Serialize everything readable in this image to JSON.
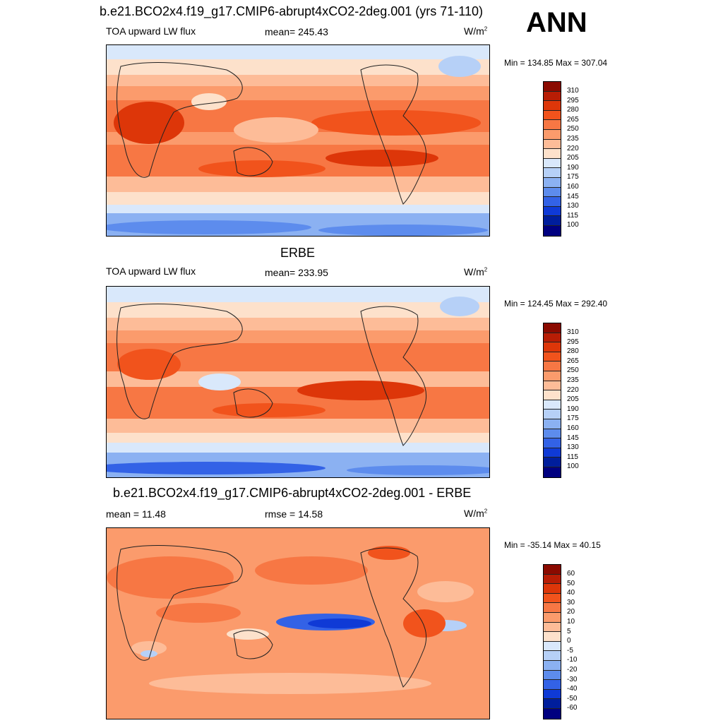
{
  "header": {
    "season": "ANN"
  },
  "panels": [
    {
      "title": "b.e21.BCO2x4.f19_g17.CMIP6-abrupt4xCO2-2deg.001 (yrs 71-110)",
      "left_label": "TOA upward LW flux",
      "center_label": "mean= 245.43",
      "unit_base": "W/m",
      "unit_sup": "2",
      "minmax": "Min = 134.85 Max = 307.04",
      "colorbar_labels": [
        "310",
        "295",
        "280",
        "265",
        "250",
        "235",
        "220",
        "205",
        "190",
        "175",
        "160",
        "145",
        "130",
        "115",
        "100"
      ]
    },
    {
      "title": "ERBE",
      "left_label": "TOA upward LW flux",
      "center_label": "mean= 233.95",
      "unit_base": "W/m",
      "unit_sup": "2",
      "minmax": "Min = 124.45 Max = 292.40",
      "colorbar_labels": [
        "310",
        "295",
        "280",
        "265",
        "250",
        "235",
        "220",
        "205",
        "190",
        "175",
        "160",
        "145",
        "130",
        "115",
        "100"
      ]
    },
    {
      "title": "b.e21.BCO2x4.f19_g17.CMIP6-abrupt4xCO2-2deg.001 - ERBE",
      "left_label": "mean =  11.48",
      "center_label": "rmse =  14.58",
      "unit_base": "W/m",
      "unit_sup": "2",
      "minmax": "Min = -35.14 Max =  40.15",
      "colorbar_labels": [
        "60",
        "50",
        "40",
        "30",
        "20",
        "10",
        "5",
        "0",
        "-5",
        "-10",
        "-20",
        "-30",
        "-40",
        "-50",
        "-60"
      ]
    }
  ],
  "colors": {
    "colorbar": [
      "#8b0a00",
      "#b81d05",
      "#dd3609",
      "#f1531c",
      "#f77744",
      "#fb9b6c",
      "#fdbc98",
      "#fde1cb",
      "#d9e8fb",
      "#b6d0f7",
      "#8bb1f2",
      "#5d8ced",
      "#3362e6",
      "#0f3ad6",
      "#001e9c",
      "#000080"
    ]
  }
}
